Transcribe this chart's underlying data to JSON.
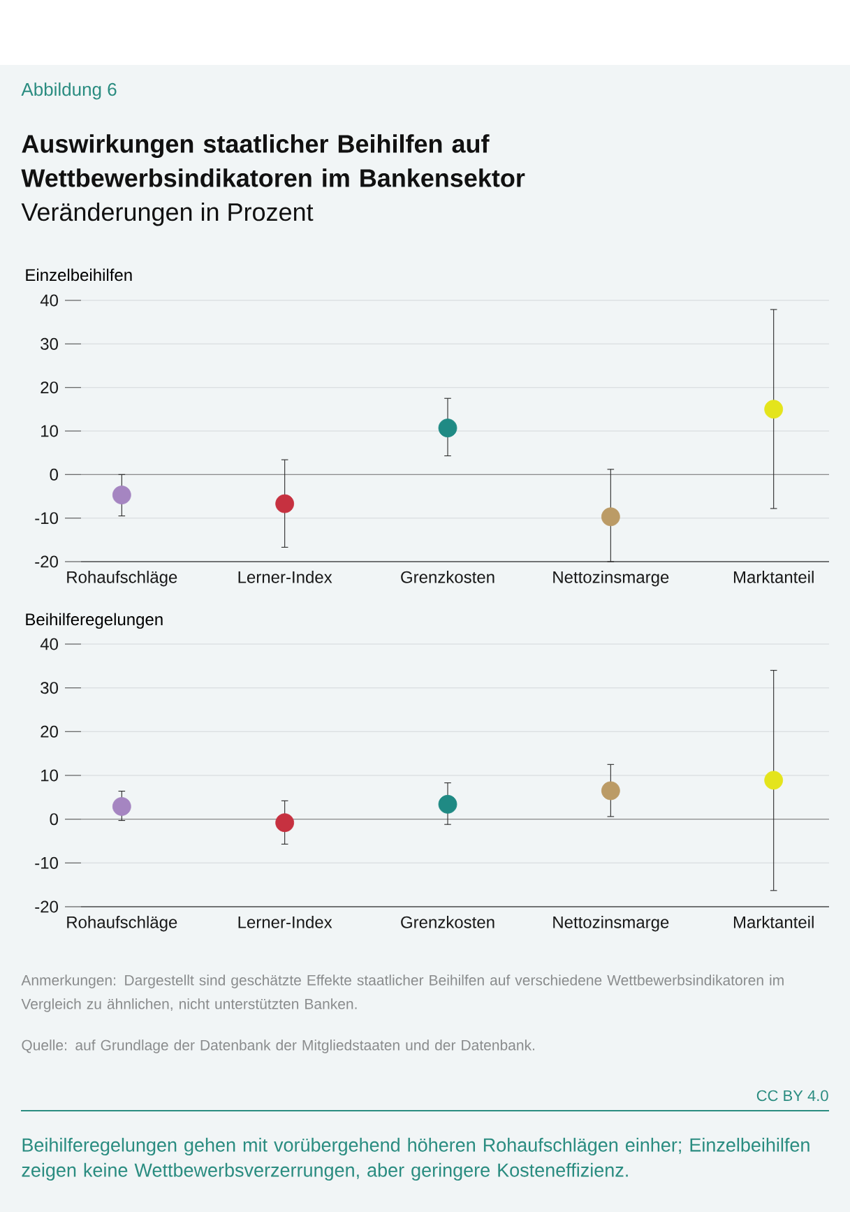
{
  "chart_data": [
    {
      "type": "scatter",
      "title": "Auswirkungen staatlicher Beihilfen auf Wettbewerbsindikatoren im Bankensektor",
      "subtitle": "Veränderungen in Prozent",
      "ylabel": "Einzelbeihilfen",
      "annotations": [
        "Abbildung 6"
      ],
      "categories": [
        "Rohaufschläge",
        "Lerner-Index",
        "Grenzkosten",
        "Nettozinsmarge",
        "Marktanteil"
      ],
      "values": [
        -4.7,
        -6.7,
        10.7,
        -9.7,
        15.0
      ],
      "errors": [
        [
          -9.5,
          0
        ],
        [
          -16.7,
          3.4
        ],
        [
          4.3,
          17.5
        ],
        [
          -20,
          1.2
        ],
        [
          -7.8,
          37.9
        ]
      ],
      "colors": [
        "#a585c1",
        "#c63140",
        "#1f8a84",
        "#bb9b66",
        "#e4e41c"
      ],
      "ylim": [
        -20,
        40
      ],
      "yticks": [
        -20,
        -10,
        0,
        10,
        20,
        30,
        40
      ],
      "grid": "y",
      "marker": "circle",
      "ref_lines": [
        {
          "axis": "y",
          "value": 0,
          "color": "#8c8c8c"
        }
      ]
    },
    {
      "type": "scatter",
      "ylabel": "Beihilferegelungen",
      "annotations": [
        "Anmerkungen: Dargestellt sind geschätzte Effekte staatlicher Beihilfen auf verschiedene Wettbewerbsindikatoren im Vergleich zu ähnlichen, nicht unterstützten Banken.",
        "Quelle: auf Grundlage der Datenbank der Mitgliedstaaten und der Datenbank.",
        "CC BY 4.0",
        "Beihilferegelungen gehen mit vorübergehend höheren Rohaufschlägen einher; Einzelbeihilfen zeigen keine Wettbewerbsverzerrungen, aber geringere Kosteneffizienz."
      ],
      "categories": [
        "Rohaufschläge",
        "Lerner-Index",
        "Grenzkosten",
        "Nettozinsmarge",
        "Marktanteil"
      ],
      "values": [
        2.9,
        -0.8,
        3.4,
        6.5,
        8.9
      ],
      "errors": [
        [
          -0.3,
          6.4
        ],
        [
          -5.7,
          4.2
        ],
        [
          -1.2,
          8.3
        ],
        [
          0.6,
          12.5
        ],
        [
          -16.3,
          34.0
        ]
      ],
      "colors": [
        "#a585c1",
        "#c63140",
        "#1f8a84",
        "#bb9b66",
        "#e4e41c"
      ],
      "ylim": [
        -20,
        40
      ],
      "yticks": [
        -20,
        -10,
        0,
        10,
        20,
        30,
        40
      ],
      "grid": "y",
      "marker": "circle",
      "ref_lines": [
        {
          "axis": "y",
          "value": 0,
          "color": "#8c8c8c"
        }
      ]
    }
  ]
}
